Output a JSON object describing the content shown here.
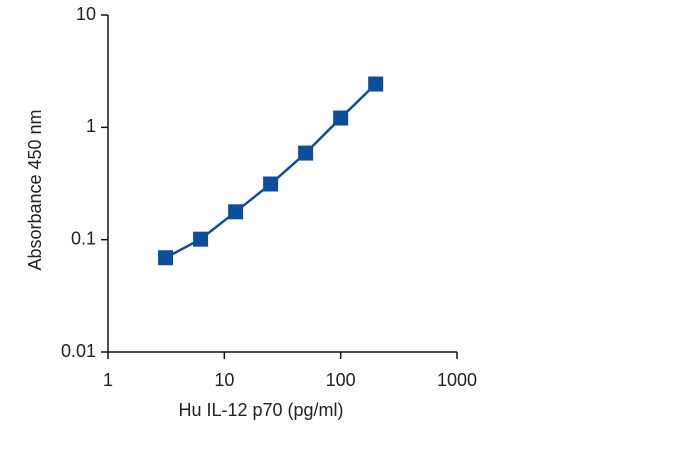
{
  "chart_data": {
    "type": "line",
    "x_label": "Hu IL-12 p70 (pg/ml)",
    "y_label": "Absorbance 450 nm",
    "xscale": "log",
    "yscale": "log",
    "xlim": [
      1,
      1000
    ],
    "xticks": [
      1,
      10,
      100,
      1000
    ],
    "ylim": [
      0.01,
      10
    ],
    "yticks": [
      0.01,
      0.1,
      1,
      10
    ],
    "series": [
      {
        "color": "#0b4f9c",
        "x": [
          3.125,
          6.25,
          12.5,
          25,
          50,
          100,
          200
        ],
        "values": [
          0.069,
          0.101,
          0.177,
          0.313,
          0.59,
          1.21,
          2.43
        ]
      }
    ]
  }
}
